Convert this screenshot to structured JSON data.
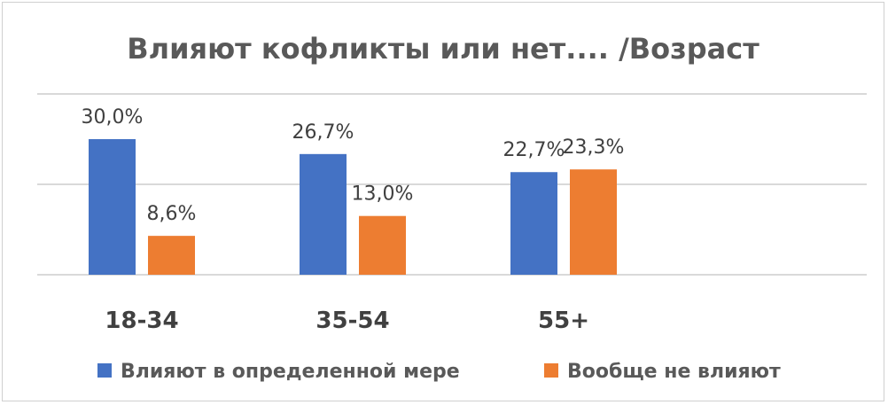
{
  "chart_data": {
    "type": "bar",
    "title": "Влияют кофликты или нет.... /Возраст",
    "categories": [
      "18-34",
      "35-54",
      "55+"
    ],
    "series": [
      {
        "name": "Влияют в определенной мере",
        "values": [
          30.0,
          26.7,
          22.7
        ],
        "labels": [
          "30,0%",
          "26,7%",
          "22,7%"
        ],
        "color": "#4472c4"
      },
      {
        "name": "Вообще не влияют",
        "values": [
          8.6,
          13.0,
          23.3
        ],
        "labels": [
          "8,6%",
          "13,0%",
          "23,3%"
        ],
        "color": "#ed7d31"
      }
    ],
    "ylim": [
      0,
      40
    ],
    "grid": true,
    "legend": "bottom"
  }
}
